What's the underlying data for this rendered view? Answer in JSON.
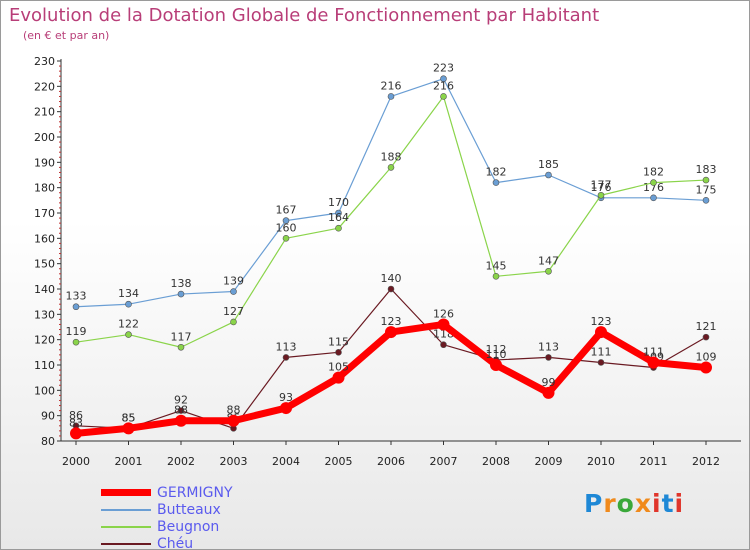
{
  "title": "Evolution de la Dotation Globale de Fonctionnement par Habitant",
  "subtitle": "(en € et par an)",
  "brand": {
    "text": "Proxiti",
    "letter_colors": [
      "#1e88d6",
      "#f08a1c",
      "#3aa83a",
      "#f08a1c",
      "#e0352b",
      "#1e88d6",
      "#e0352b"
    ]
  },
  "chart_data": {
    "type": "line",
    "title": "Evolution de la Dotation Globale de Fonctionnement par Habitant",
    "subtitle": "(en € et par an)",
    "x": [
      "2000",
      "2001",
      "2002",
      "2003",
      "2004",
      "2005",
      "2006",
      "2007",
      "2008",
      "2009",
      "2010",
      "2011",
      "2012"
    ],
    "ylim": [
      80,
      230
    ],
    "yticks": [
      "80",
      "90",
      "100",
      "110",
      "120",
      "130",
      "140",
      "150",
      "160",
      "170",
      "180",
      "190",
      "200",
      "210",
      "220",
      "230"
    ],
    "grid": false,
    "legend_position": "bottom-left",
    "series": [
      {
        "name": "GERMIGNY",
        "color": "#ff0000",
        "values": [
          83,
          85,
          88,
          88,
          93,
          105,
          123,
          126,
          110,
          99,
          123,
          111,
          109
        ],
        "labels": [
          "83",
          "85",
          "88",
          "88",
          "93",
          "105",
          "123",
          "126",
          "110",
          "99",
          "123",
          "111",
          "109"
        ]
      },
      {
        "name": "Butteaux",
        "color": "#6a9ed4",
        "values": [
          133,
          134,
          138,
          139,
          167,
          170,
          216,
          223,
          182,
          185,
          176,
          176,
          175
        ],
        "labels": [
          "133",
          "134",
          "138",
          "139",
          "167",
          "170",
          "216",
          "223",
          "182",
          "185",
          "176",
          "176",
          "175"
        ]
      },
      {
        "name": "Beugnon",
        "color": "#8ad44a",
        "values": [
          119,
          122,
          117,
          127,
          160,
          164,
          188,
          216,
          145,
          147,
          177,
          182,
          183
        ],
        "labels": [
          "119",
          "122",
          "117",
          "127",
          "160",
          "164",
          "188",
          "216",
          "145",
          "147",
          "177",
          "182",
          "183"
        ]
      },
      {
        "name": "Chéu",
        "color": "#6a1a22",
        "values": [
          86,
          85,
          92,
          85,
          113,
          115,
          140,
          118,
          112,
          113,
          111,
          109,
          121
        ],
        "labels": [
          "86",
          "85",
          "92",
          "85",
          "113",
          "115",
          "140",
          "118",
          "112",
          "113",
          "111",
          "109",
          "121"
        ]
      }
    ]
  }
}
